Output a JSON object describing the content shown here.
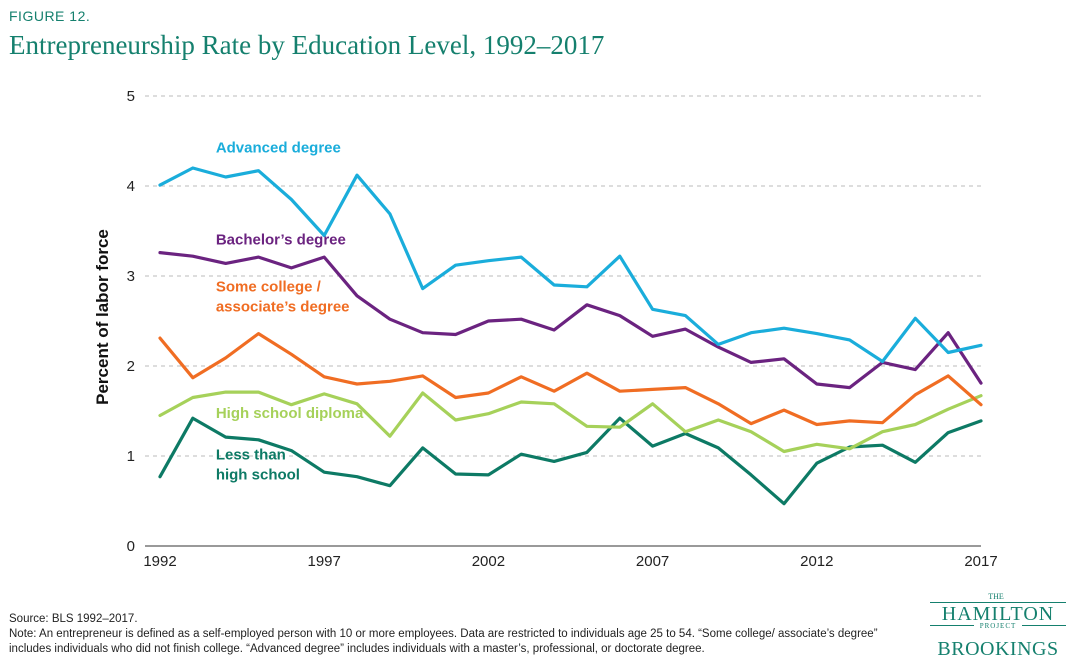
{
  "figure_label": "FIGURE 12.",
  "source": "Source: BLS 1992–2017.",
  "note": "Note: An entrepreneur is defined as a self-employed person with 10 or more employees. Data are restricted to individuals age 25 to 54. “Some college/ associate’s degree” includes individuals who did not finish college. “Advanced degree” includes individuals with a master’s, professional, or doctorate degree.",
  "logo": {
    "the": "THE",
    "hamilton": "HAMILTON",
    "project": "PROJECT",
    "brookings": "BROOKINGS"
  },
  "colors": {
    "title": "#15806e",
    "advanced": "#1aaddb",
    "bachelors": "#6b2380",
    "some_college": "#f06d23",
    "high_school": "#a6d15a",
    "less_than_hs": "#0d7a65"
  },
  "chart_data": {
    "type": "line",
    "title": "Entrepreneurship Rate by Education Level, 1992–2017",
    "xlabel": "",
    "ylabel": "Percent of labor force",
    "xlim": [
      1992,
      2017
    ],
    "ylim": [
      0,
      5
    ],
    "x_ticks": [
      1992,
      1997,
      2002,
      2007,
      2012,
      2017
    ],
    "y_ticks": [
      0,
      1,
      2,
      3,
      4,
      5
    ],
    "grid": "horizontal dashed",
    "x": [
      1992,
      1993,
      1994,
      1995,
      1996,
      1997,
      1998,
      1999,
      2000,
      2001,
      2002,
      2003,
      2004,
      2005,
      2006,
      2007,
      2008,
      2009,
      2010,
      2011,
      2012,
      2013,
      2014,
      2015,
      2016,
      2017
    ],
    "series": [
      {
        "key": "advanced",
        "name": "Advanced degree",
        "label_lines": [
          "Advanced degree"
        ],
        "label_at": [
          1993.7,
          4.37
        ],
        "values": [
          4.01,
          4.2,
          4.1,
          4.17,
          3.85,
          3.45,
          4.12,
          3.69,
          2.86,
          3.12,
          3.17,
          3.21,
          2.9,
          2.88,
          3.22,
          2.63,
          2.56,
          2.24,
          2.37,
          2.42,
          2.36,
          2.29,
          2.05,
          2.53,
          2.15,
          2.23
        ]
      },
      {
        "key": "bachelors",
        "name": "Bachelor’s degree",
        "label_lines": [
          "Bachelor’s degree"
        ],
        "label_at": [
          1993.7,
          3.35
        ],
        "values": [
          3.26,
          3.22,
          3.14,
          3.21,
          3.09,
          3.21,
          2.78,
          2.52,
          2.37,
          2.35,
          2.5,
          2.52,
          2.4,
          2.68,
          2.56,
          2.33,
          2.41,
          2.21,
          2.04,
          2.08,
          1.8,
          1.76,
          2.04,
          1.96,
          2.37,
          1.81
        ]
      },
      {
        "key": "some_college",
        "name": "Some college / associate’s degree",
        "label_lines": [
          "Some college /",
          "associate’s degree"
        ],
        "label_at": [
          1993.7,
          2.83
        ],
        "values": [
          2.31,
          1.87,
          2.09,
          2.36,
          2.13,
          1.88,
          1.8,
          1.83,
          1.89,
          1.65,
          1.7,
          1.88,
          1.72,
          1.92,
          1.72,
          1.74,
          1.76,
          1.58,
          1.36,
          1.51,
          1.35,
          1.39,
          1.37,
          1.68,
          1.89,
          1.57
        ]
      },
      {
        "key": "high_school",
        "name": "High school diploma",
        "label_lines": [
          "High school diploma"
        ],
        "label_at": [
          1993.7,
          1.42
        ],
        "values": [
          1.45,
          1.65,
          1.71,
          1.71,
          1.57,
          1.69,
          1.58,
          1.22,
          1.7,
          1.4,
          1.47,
          1.6,
          1.58,
          1.33,
          1.32,
          1.58,
          1.27,
          1.4,
          1.27,
          1.05,
          1.13,
          1.08,
          1.27,
          1.35,
          1.52,
          1.67
        ]
      },
      {
        "key": "less_than_hs",
        "name": "Less than high school",
        "label_lines": [
          "Less than",
          "high school"
        ],
        "label_at": [
          1993.7,
          0.96
        ],
        "values": [
          0.77,
          1.42,
          1.21,
          1.18,
          1.06,
          0.82,
          0.77,
          0.67,
          1.09,
          0.8,
          0.79,
          1.02,
          0.94,
          1.04,
          1.42,
          1.11,
          1.25,
          1.09,
          0.79,
          0.47,
          0.92,
          1.1,
          1.12,
          0.93,
          1.26,
          1.39
        ]
      }
    ]
  }
}
